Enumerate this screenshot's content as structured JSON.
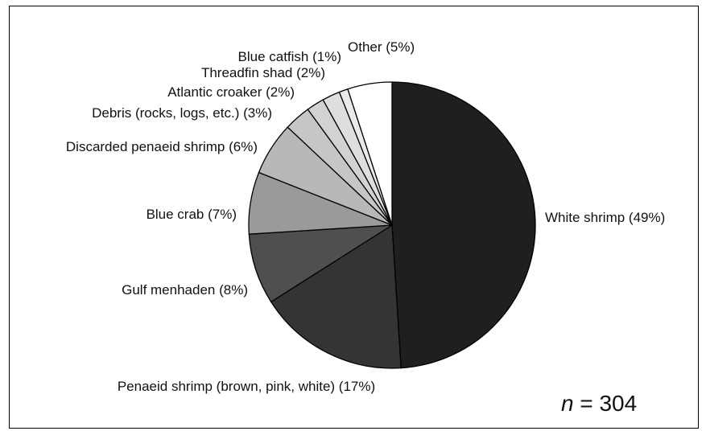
{
  "chart_data": {
    "type": "pie",
    "title": "",
    "slices": [
      {
        "label": "White shrimp (49%)",
        "value": 49,
        "color": "#1f1f1f"
      },
      {
        "label": "Penaeid shrimp (brown, pink, white) (17%)",
        "value": 17,
        "color": "#343434"
      },
      {
        "label": "Gulf menhaden (8%)",
        "value": 8,
        "color": "#4f4f4f"
      },
      {
        "label": "Blue crab (7%)",
        "value": 7,
        "color": "#9a9a9a"
      },
      {
        "label": "Discarded  penaeid shrimp (6%)",
        "value": 6,
        "color": "#b8b8b8"
      },
      {
        "label": "Debris (rocks, logs, etc.) (3%)",
        "value": 3,
        "color": "#c6c6c6"
      },
      {
        "label": "Atlantic croaker (2%)",
        "value": 2,
        "color": "#d2d2d2"
      },
      {
        "label": "Threadfin shad (2%)",
        "value": 2,
        "color": "#dedede"
      },
      {
        "label": "Blue catfish (1%)",
        "value": 1,
        "color": "#eaeaea"
      },
      {
        "label": "Other  (5%)",
        "value": 5,
        "color": "#ffffff"
      }
    ],
    "start": "12 o'clock",
    "direction": "clockwise",
    "legend": "none (labels beside slices)"
  },
  "annotation": {
    "italic": "n",
    "rest": " = 304"
  }
}
